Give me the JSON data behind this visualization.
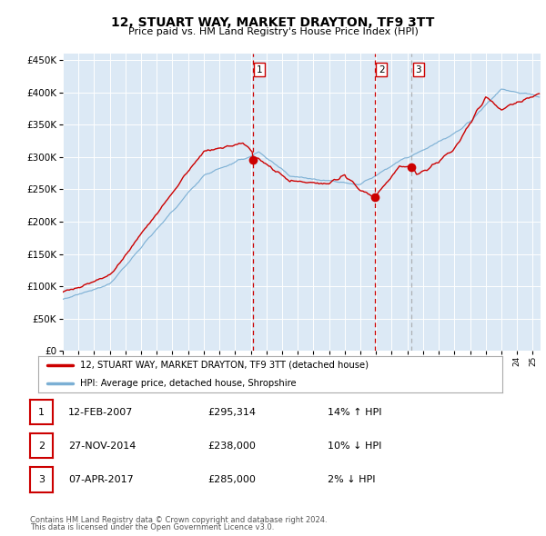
{
  "title": "12, STUART WAY, MARKET DRAYTON, TF9 3TT",
  "subtitle": "Price paid vs. HM Land Registry's House Price Index (HPI)",
  "legend_property": "12, STUART WAY, MARKET DRAYTON, TF9 3TT (detached house)",
  "legend_hpi": "HPI: Average price, detached house, Shropshire",
  "footer1": "Contains HM Land Registry data © Crown copyright and database right 2024.",
  "footer2": "This data is licensed under the Open Government Licence v3.0.",
  "transactions": [
    {
      "num": 1,
      "date": "12-FEB-2007",
      "price": 295314,
      "pct": "14%",
      "dir": "↑",
      "x_year": 2007.12
    },
    {
      "num": 2,
      "date": "27-NOV-2014",
      "price": 238000,
      "pct": "10%",
      "dir": "↓",
      "x_year": 2014.9
    },
    {
      "num": 3,
      "date": "07-APR-2017",
      "price": 285000,
      "pct": "2%",
      "dir": "↓",
      "x_year": 2017.27
    }
  ],
  "property_color": "#cc0000",
  "hpi_color": "#7bafd4",
  "background_color": "#dce9f5",
  "grid_color": "#ffffff",
  "vline_colors": [
    "#cc0000",
    "#cc0000",
    "#999999"
  ],
  "ylim": [
    0,
    460000
  ],
  "yticks": [
    0,
    50000,
    100000,
    150000,
    200000,
    250000,
    300000,
    350000,
    400000,
    450000
  ],
  "xlim_start": 1995.0,
  "xlim_end": 2025.5
}
